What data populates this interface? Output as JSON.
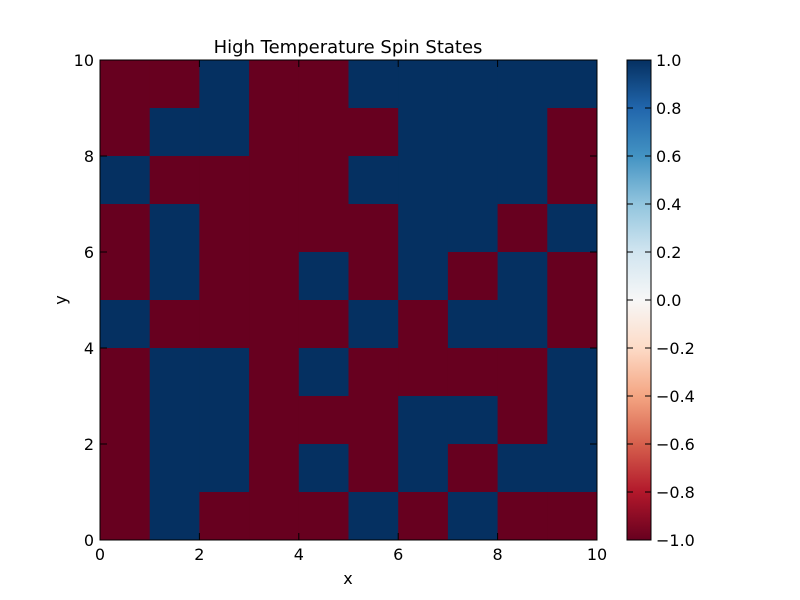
{
  "chart_data": {
    "type": "heatmap",
    "title": "High Temperature Spin States",
    "xlabel": "x",
    "ylabel": "y",
    "xlim": [
      0,
      10
    ],
    "ylim": [
      0,
      10
    ],
    "x_ticks": [
      0,
      2,
      4,
      6,
      8,
      10
    ],
    "y_ticks": [
      0,
      2,
      4,
      6,
      8,
      10
    ],
    "colorbar": {
      "vmin": -1.0,
      "vmax": 1.0,
      "ticks": [
        -1.0,
        -0.8,
        -0.6,
        -0.4,
        -0.2,
        0.0,
        0.2,
        0.4,
        0.6,
        0.8,
        1.0
      ],
      "tick_labels": [
        "−1.0",
        "−0.8",
        "−0.6",
        "−0.4",
        "−0.2",
        "0.0",
        "0.2",
        "0.4",
        "0.6",
        "0.8",
        "1.0"
      ],
      "colormap": "RdBu",
      "stops": [
        "#67001f",
        "#b2182b",
        "#d6604d",
        "#f4a582",
        "#fddbc7",
        "#f7f7f7",
        "#d1e5f0",
        "#92c5de",
        "#4393c3",
        "#2166ac",
        "#053061"
      ],
      "placement": "right"
    },
    "colors": {
      "positive": "#053061",
      "negative": "#67001f"
    },
    "grid": false,
    "rows_top_to_bottom": [
      [
        -1,
        -1,
        1,
        -1,
        -1,
        1,
        1,
        1,
        1,
        1
      ],
      [
        -1,
        1,
        1,
        -1,
        -1,
        -1,
        1,
        1,
        1,
        -1
      ],
      [
        1,
        -1,
        -1,
        -1,
        -1,
        1,
        1,
        1,
        1,
        -1
      ],
      [
        -1,
        1,
        -1,
        -1,
        -1,
        -1,
        1,
        1,
        -1,
        1
      ],
      [
        -1,
        1,
        -1,
        -1,
        1,
        -1,
        1,
        -1,
        1,
        -1
      ],
      [
        1,
        -1,
        -1,
        -1,
        -1,
        1,
        -1,
        1,
        1,
        -1
      ],
      [
        -1,
        1,
        1,
        -1,
        1,
        -1,
        -1,
        -1,
        -1,
        1
      ],
      [
        -1,
        1,
        1,
        -1,
        -1,
        -1,
        1,
        1,
        -1,
        1
      ],
      [
        -1,
        1,
        1,
        -1,
        1,
        -1,
        1,
        -1,
        1,
        1
      ],
      [
        -1,
        1,
        -1,
        -1,
        -1,
        1,
        -1,
        1,
        -1,
        -1
      ]
    ]
  }
}
